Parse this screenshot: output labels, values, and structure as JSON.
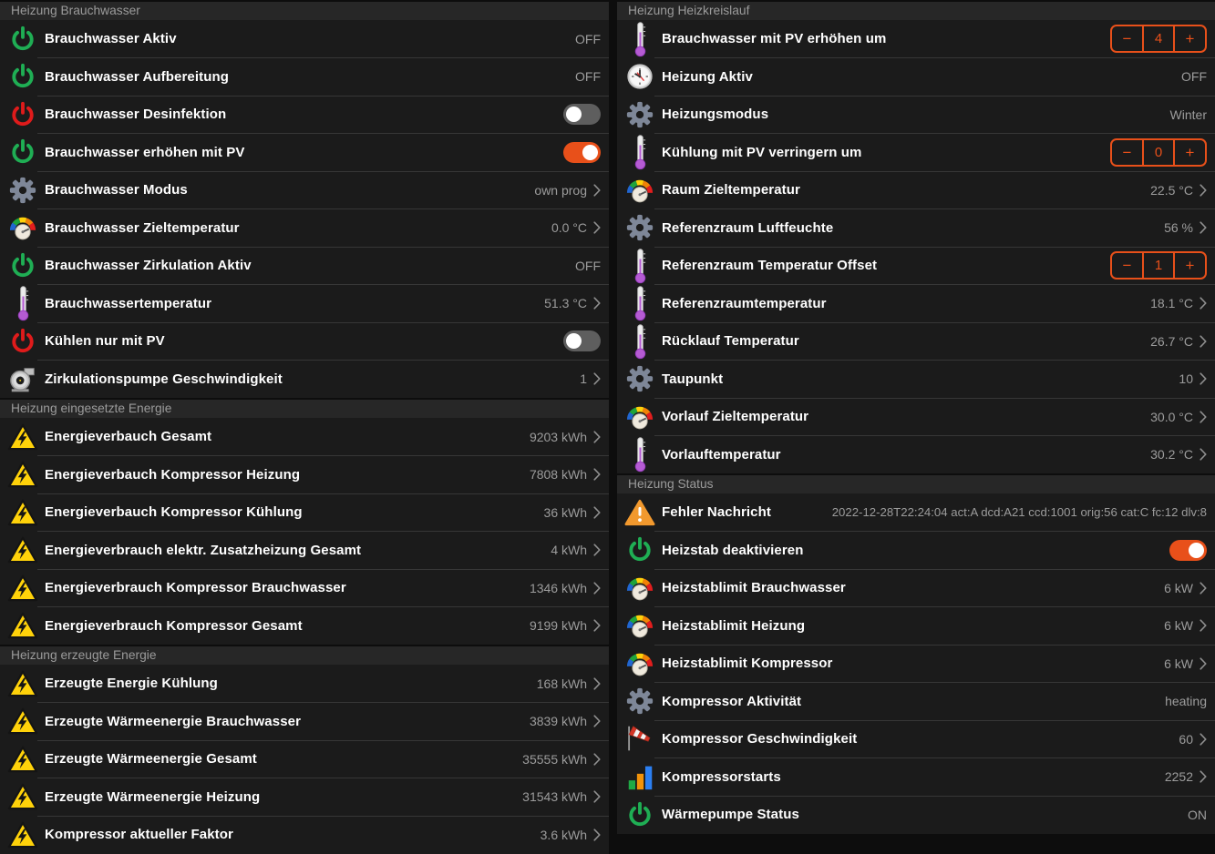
{
  "accent_color": "#e8501a",
  "controls": {
    "stepper_minus": "−",
    "stepper_plus": "+"
  },
  "columns": [
    {
      "sections": [
        {
          "title": "Heizung Brauchwasser",
          "rows": [
            {
              "icon": "power-on-icon",
              "label": "Brauchwasser Aktiv",
              "value": "OFF",
              "control": "text",
              "chevron": false
            },
            {
              "icon": "power-on-icon",
              "label": "Brauchwasser Aufbereitung",
              "value": "OFF",
              "control": "text",
              "chevron": false
            },
            {
              "icon": "power-off-icon",
              "label": "Brauchwasser Desinfektion",
              "control": "toggle",
              "state": "off"
            },
            {
              "icon": "power-on-icon",
              "label": "Brauchwasser erhöhen mit PV",
              "control": "toggle",
              "state": "on"
            },
            {
              "icon": "gear-icon",
              "label": "Brauchwasser Modus",
              "value": "own prog",
              "control": "text",
              "chevron": true
            },
            {
              "icon": "temperature-gauge-icon",
              "label": "Brauchwasser Zieltemperatur",
              "value": "0.0 °C",
              "control": "text",
              "chevron": true
            },
            {
              "icon": "power-on-icon",
              "label": "Brauchwasser Zirkulation Aktiv",
              "value": "OFF",
              "control": "text",
              "chevron": false
            },
            {
              "icon": "thermometer-icon",
              "label": "Brauchwassertemperatur",
              "value": "51.3 °C",
              "control": "text",
              "chevron": true
            },
            {
              "icon": "power-off-icon",
              "label": "Kühlen nur mit PV",
              "control": "toggle",
              "state": "off"
            },
            {
              "icon": "pump-icon",
              "label": "Zirkulationspumpe Geschwindigkeit",
              "value": "1",
              "control": "text",
              "chevron": true
            }
          ]
        },
        {
          "title": "Heizung eingesetzte Energie",
          "rows": [
            {
              "icon": "energy-warning-icon",
              "label": "Energieverbauch Gesamt",
              "value": "9203 kWh",
              "control": "text",
              "chevron": true
            },
            {
              "icon": "energy-warning-icon",
              "label": "Energieverbauch Kompressor Heizung",
              "value": "7808 kWh",
              "control": "text",
              "chevron": true
            },
            {
              "icon": "energy-warning-icon",
              "label": "Energieverbauch Kompressor Kühlung",
              "value": "36 kWh",
              "control": "text",
              "chevron": true
            },
            {
              "icon": "energy-warning-icon",
              "label": "Energieverbrauch elektr. Zusatzheizung Gesamt",
              "value": "4 kWh",
              "control": "text",
              "chevron": true
            },
            {
              "icon": "energy-warning-icon",
              "label": "Energieverbrauch Kompressor Brauchwasser",
              "value": "1346 kWh",
              "control": "text",
              "chevron": true
            },
            {
              "icon": "energy-warning-icon",
              "label": "Energieverbrauch Kompressor Gesamt",
              "value": "9199 kWh",
              "control": "text",
              "chevron": true
            }
          ]
        },
        {
          "title": "Heizung erzeugte Energie",
          "rows": [
            {
              "icon": "energy-warning-icon",
              "label": "Erzeugte Energie Kühlung",
              "value": "168 kWh",
              "control": "text",
              "chevron": true
            },
            {
              "icon": "energy-warning-icon",
              "label": "Erzeugte Wärmeenergie Brauchwasser",
              "value": "3839 kWh",
              "control": "text",
              "chevron": true
            },
            {
              "icon": "energy-warning-icon",
              "label": "Erzeugte Wärmeenergie Gesamt",
              "value": "35555 kWh",
              "control": "text",
              "chevron": true
            },
            {
              "icon": "energy-warning-icon",
              "label": "Erzeugte Wärmeenergie Heizung",
              "value": "31543 kWh",
              "control": "text",
              "chevron": true
            },
            {
              "icon": "energy-warning-icon",
              "label": "Kompressor aktueller Faktor",
              "value": "3.6 kWh",
              "control": "text",
              "chevron": true
            }
          ]
        }
      ]
    },
    {
      "sections": [
        {
          "title": "Heizung Heizkreislauf",
          "rows": [
            {
              "icon": "thermometer-icon",
              "label": "Brauchwasser mit PV erhöhen um",
              "control": "stepper",
              "value": "4"
            },
            {
              "icon": "clock-icon",
              "label": "Heizung Aktiv",
              "value": "OFF",
              "control": "text",
              "chevron": false
            },
            {
              "icon": "gear-icon",
              "label": "Heizungsmodus",
              "value": "Winter",
              "control": "text",
              "chevron": false
            },
            {
              "icon": "thermometer-icon",
              "label": "Kühlung mit PV verringern um",
              "control": "stepper",
              "value": "0"
            },
            {
              "icon": "temperature-gauge-icon",
              "label": "Raum Zieltemperatur",
              "value": "22.5 °C",
              "control": "text",
              "chevron": true
            },
            {
              "icon": "gear-icon",
              "label": "Referenzraum Luftfeuchte",
              "value": "56 %",
              "control": "text",
              "chevron": true
            },
            {
              "icon": "thermometer-icon",
              "label": "Referenzraum Temperatur Offset",
              "control": "stepper",
              "value": "1"
            },
            {
              "icon": "thermometer-icon",
              "label": "Referenzraumtemperatur",
              "value": "18.1 °C",
              "control": "text",
              "chevron": true
            },
            {
              "icon": "thermometer-icon",
              "label": "Rücklauf Temperatur",
              "value": "26.7 °C",
              "control": "text",
              "chevron": true
            },
            {
              "icon": "gear-icon",
              "label": "Taupunkt",
              "value": "10",
              "control": "text",
              "chevron": true
            },
            {
              "icon": "temperature-gauge-icon",
              "label": "Vorlauf Zieltemperatur",
              "value": "30.0 °C",
              "control": "text",
              "chevron": true
            },
            {
              "icon": "thermometer-icon",
              "label": "Vorlauftemperatur",
              "value": "30.2 °C",
              "control": "text",
              "chevron": true
            }
          ]
        },
        {
          "title": "Heizung Status",
          "rows": [
            {
              "icon": "alert-warning-icon",
              "label": "Fehler Nachricht",
              "value": "2022-12-28T22:24:04 act:A dcd:A21 ccd:1001 orig:56 cat:C fc:12 dlv:8",
              "control": "text",
              "chevron": false,
              "small_value": true
            },
            {
              "icon": "power-on-icon",
              "label": "Heizstab deaktivieren",
              "control": "toggle",
              "state": "on"
            },
            {
              "icon": "temperature-gauge-icon",
              "label": "Heizstablimit Brauchwasser",
              "value": "6 kW",
              "control": "text",
              "chevron": true
            },
            {
              "icon": "temperature-gauge-icon",
              "label": "Heizstablimit Heizung",
              "value": "6 kW",
              "control": "text",
              "chevron": true
            },
            {
              "icon": "temperature-gauge-icon",
              "label": "Heizstablimit Kompressor",
              "value": "6 kW",
              "control": "text",
              "chevron": true
            },
            {
              "icon": "gear-icon",
              "label": "Kompressor Aktivität",
              "value": "heating",
              "control": "text",
              "chevron": false
            },
            {
              "icon": "windsock-icon",
              "label": "Kompressor Geschwindigkeit",
              "value": "60",
              "control": "text",
              "chevron": true
            },
            {
              "icon": "bar-chart-icon",
              "label": "Kompressorstarts",
              "value": "2252",
              "control": "text",
              "chevron": true
            },
            {
              "icon": "power-on-icon",
              "label": "Wärmepumpe Status",
              "value": "ON",
              "control": "text",
              "chevron": false
            }
          ]
        }
      ]
    }
  ]
}
